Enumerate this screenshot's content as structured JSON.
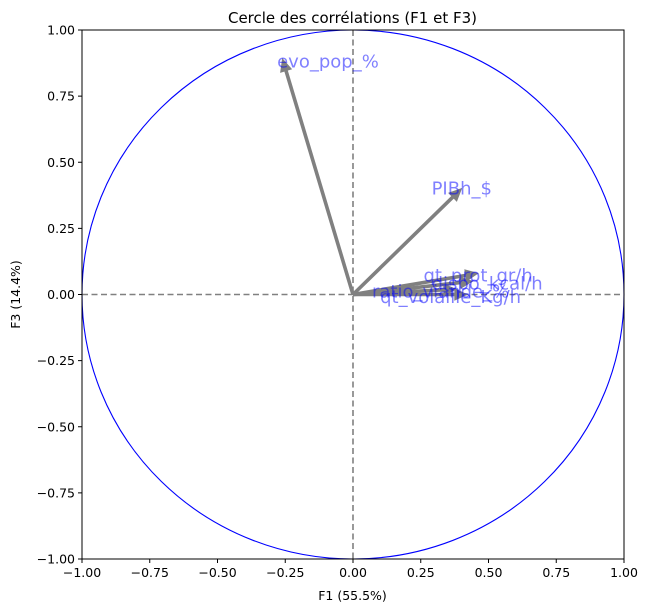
{
  "chart_data": {
    "type": "correlation-circle",
    "title": "Cercle des corrélations (F1 et F3)",
    "xlabel": "F1 (55.5%)",
    "ylabel": "F3 (14.4%)",
    "xlim": [
      -1.0,
      1.0
    ],
    "ylim": [
      -1.0,
      1.0
    ],
    "x_ticks": [
      -1.0,
      -0.75,
      -0.5,
      -0.25,
      0.0,
      0.25,
      0.5,
      0.75,
      1.0
    ],
    "y_ticks": [
      -1.0,
      -0.75,
      -0.5,
      -0.25,
      0.0,
      0.25,
      0.5,
      0.75,
      1.0
    ],
    "x_tick_labels": [
      "−1.00",
      "−0.75",
      "−0.50",
      "−0.25",
      "0.00",
      "0.25",
      "0.50",
      "0.75",
      "1.00"
    ],
    "y_tick_labels": [
      "−1.00",
      "−0.75",
      "−0.50",
      "−0.25",
      "0.00",
      "0.25",
      "0.50",
      "0.75",
      "1.00"
    ],
    "grid": false,
    "circle_color": "#0000ff",
    "arrow_color": "#808080",
    "label_color": "#0000ff",
    "reference_lines": [
      {
        "axis": "x",
        "value": 0.0
      },
      {
        "axis": "y",
        "value": 0.0
      }
    ],
    "vectors": [
      {
        "name": "evo_pop_%",
        "x": -0.26,
        "y": 0.89
      },
      {
        "name": "PIBh_$",
        "x": 0.4,
        "y": 0.4
      },
      {
        "name": "qt_prot_gr/h",
        "x": 0.46,
        "y": 0.08
      },
      {
        "name": "dispo_kcal/h",
        "x": 0.44,
        "y": 0.05
      },
      {
        "name": "ratio_viande_%",
        "x": 0.38,
        "y": 0.02
      },
      {
        "name": "qt_volaille_Kg/h",
        "x": 0.42,
        "y": 0.0
      }
    ],
    "label_texts": [
      {
        "text": "evo_pop_%",
        "x": -0.28,
        "y": 0.885
      },
      {
        "text": "PIBh_$",
        "x": 0.29,
        "y": 0.405
      },
      {
        "text": "qt_prot_gr/h",
        "x": 0.26,
        "y": 0.075
      },
      {
        "text": "dispo_kcal/h",
        "x": 0.29,
        "y": 0.045
      },
      {
        "text": "ratio_viande_%",
        "x": 0.07,
        "y": 0.015
      },
      {
        "text": "qt_volaille_Kg/h",
        "x": 0.1,
        "y": -0.005
      }
    ]
  }
}
